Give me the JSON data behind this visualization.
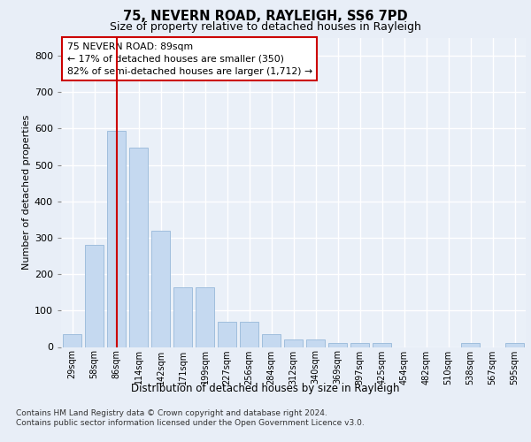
{
  "title1": "75, NEVERN ROAD, RAYLEIGH, SS6 7PD",
  "title2": "Size of property relative to detached houses in Rayleigh",
  "xlabel": "Distribution of detached houses by size in Rayleigh",
  "ylabel": "Number of detached properties",
  "categories": [
    "29sqm",
    "58sqm",
    "86sqm",
    "114sqm",
    "142sqm",
    "171sqm",
    "199sqm",
    "227sqm",
    "256sqm",
    "284sqm",
    "312sqm",
    "340sqm",
    "369sqm",
    "397sqm",
    "425sqm",
    "454sqm",
    "482sqm",
    "510sqm",
    "538sqm",
    "567sqm",
    "595sqm"
  ],
  "values": [
    35,
    280,
    595,
    548,
    320,
    165,
    165,
    70,
    70,
    35,
    20,
    20,
    10,
    10,
    10,
    0,
    0,
    0,
    10,
    0,
    10
  ],
  "bar_color": "#c5d9f0",
  "bar_edge_color": "#a0bedd",
  "vline_x": 2,
  "vline_color": "#cc0000",
  "annotation_text": "75 NEVERN ROAD: 89sqm\n← 17% of detached houses are smaller (350)\n82% of semi-detached houses are larger (1,712) →",
  "annotation_box_color": "#ffffff",
  "annotation_box_edge_color": "#cc0000",
  "bg_color": "#e8eef7",
  "plot_bg_color": "#eaf0f8",
  "grid_color": "#ffffff",
  "ylim": [
    0,
    850
  ],
  "yticks": [
    0,
    100,
    200,
    300,
    400,
    500,
    600,
    700,
    800
  ],
  "footer1": "Contains HM Land Registry data © Crown copyright and database right 2024.",
  "footer2": "Contains public sector information licensed under the Open Government Licence v3.0."
}
